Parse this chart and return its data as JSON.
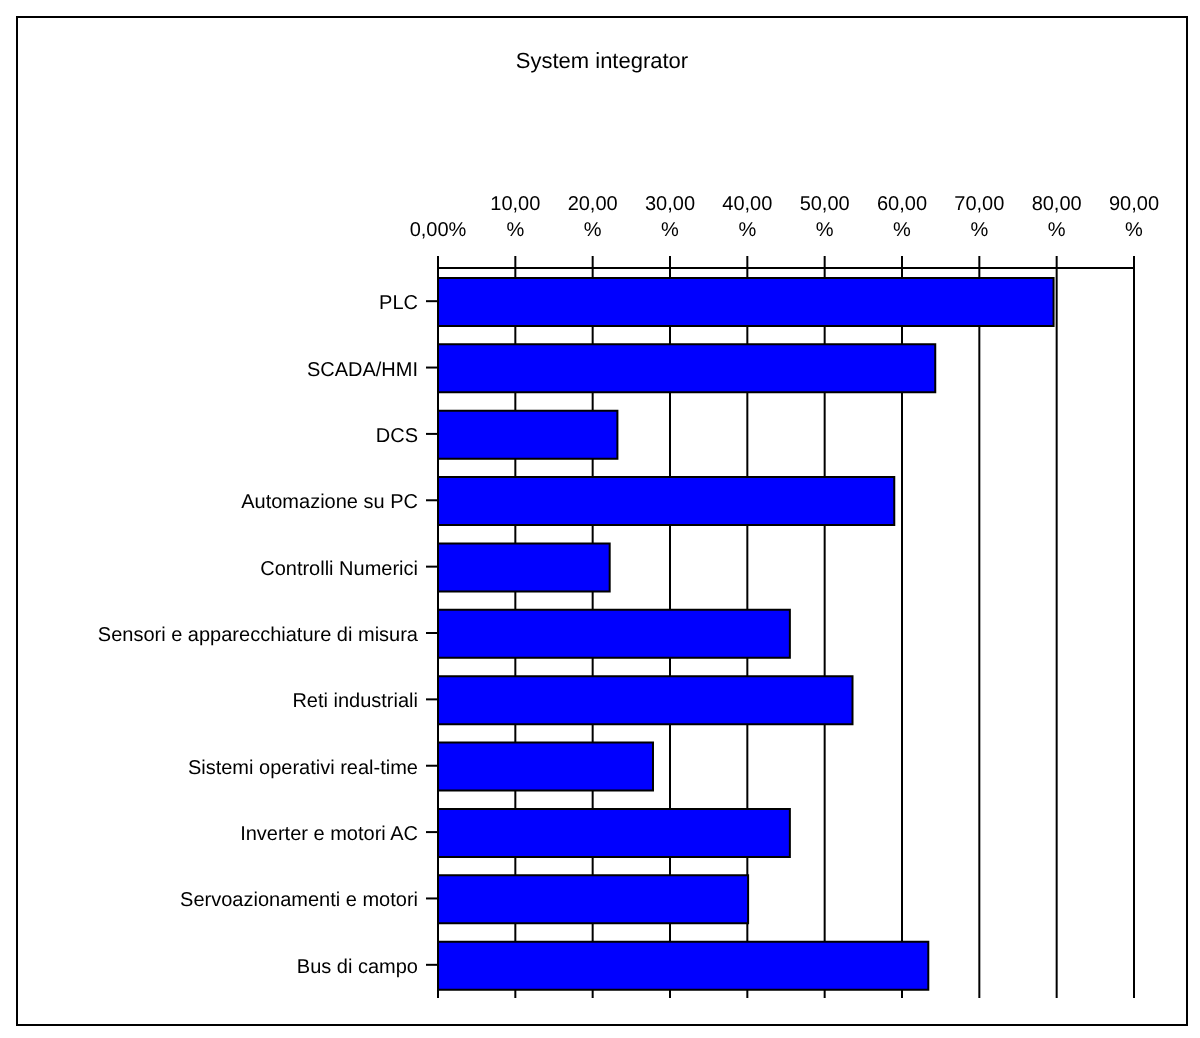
{
  "chart_data": {
    "type": "bar",
    "orientation": "horizontal",
    "title": "System integrator",
    "categories": [
      "PLC",
      "SCADA/HMI",
      "DCS",
      "Automazione su PC",
      "Controlli Numerici",
      "Sensori e apparecchiature di misura",
      "Reti industriali",
      "Sistemi operativi real-time",
      "Inverter e motori AC",
      "Servoazionamenti e motori",
      "Bus di campo"
    ],
    "values": [
      79.6,
      64.3,
      23.2,
      59.0,
      22.2,
      45.5,
      53.6,
      27.8,
      45.5,
      40.1,
      63.4
    ],
    "color": "#0000ff",
    "xlim": [
      0,
      90
    ],
    "xticks": [
      {
        "value": 0,
        "label": "0,00%"
      },
      {
        "value": 10,
        "label": "10,00%"
      },
      {
        "value": 20,
        "label": "20,00%"
      },
      {
        "value": 30,
        "label": "30,00%"
      },
      {
        "value": 40,
        "label": "40,00%"
      },
      {
        "value": 50,
        "label": "50,00%"
      },
      {
        "value": 60,
        "label": "60,00%"
      },
      {
        "value": 70,
        "label": "70,00%"
      },
      {
        "value": 80,
        "label": "80,00%"
      },
      {
        "value": 90,
        "label": "90,00%"
      }
    ],
    "grid": "x"
  }
}
